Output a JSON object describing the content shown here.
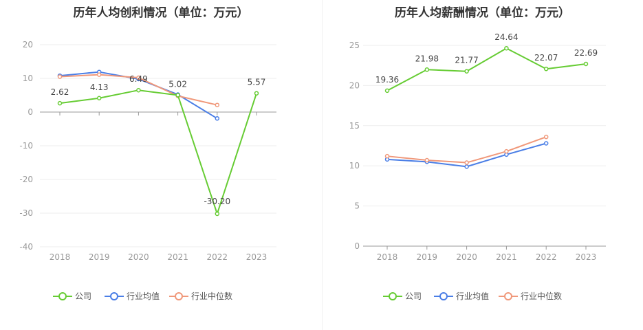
{
  "chart_data": [
    {
      "type": "line",
      "title": "历年人均创利情况（单位：万元）",
      "categories": [
        "2018",
        "2019",
        "2020",
        "2021",
        "2022",
        "2023"
      ],
      "ylim": [
        -40,
        20
      ],
      "yticks": [
        20,
        10,
        0,
        -10,
        -20,
        -30,
        -40
      ],
      "grid": true,
      "legend_position": "bottom",
      "series": [
        {
          "name": "公司",
          "color": "#66cc33",
          "values": [
            2.62,
            4.13,
            6.49,
            5.02,
            -30.2,
            5.57
          ],
          "labels": [
            "2.62",
            "4.13",
            "6.49",
            "5.02",
            "-30.20",
            "5.57"
          ]
        },
        {
          "name": "行业均值",
          "color": "#4a7ee6",
          "values": [
            10.8,
            11.9,
            9.8,
            5.2,
            -1.9,
            null
          ]
        },
        {
          "name": "行业中位数",
          "color": "#f0987a",
          "values": [
            10.5,
            11.1,
            10.2,
            4.8,
            2.1,
            null
          ]
        }
      ]
    },
    {
      "type": "line",
      "title": "历年人均薪酬情况（单位：万元）",
      "categories": [
        "2018",
        "2019",
        "2020",
        "2021",
        "2022",
        "2023"
      ],
      "ylim": [
        0,
        25
      ],
      "yticks": [
        25,
        20,
        15,
        10,
        5,
        0
      ],
      "grid": true,
      "legend_position": "bottom",
      "series": [
        {
          "name": "公司",
          "color": "#66cc33",
          "values": [
            19.36,
            21.98,
            21.77,
            24.64,
            22.07,
            22.69
          ],
          "labels": [
            "19.36",
            "21.98",
            "21.77",
            "24.64",
            "22.07",
            "22.69"
          ]
        },
        {
          "name": "行业均值",
          "color": "#4a7ee6",
          "values": [
            10.8,
            10.5,
            9.9,
            11.4,
            12.8,
            null
          ]
        },
        {
          "name": "行业中位数",
          "color": "#f0987a",
          "values": [
            11.2,
            10.7,
            10.4,
            11.8,
            13.6,
            null
          ]
        }
      ]
    }
  ]
}
